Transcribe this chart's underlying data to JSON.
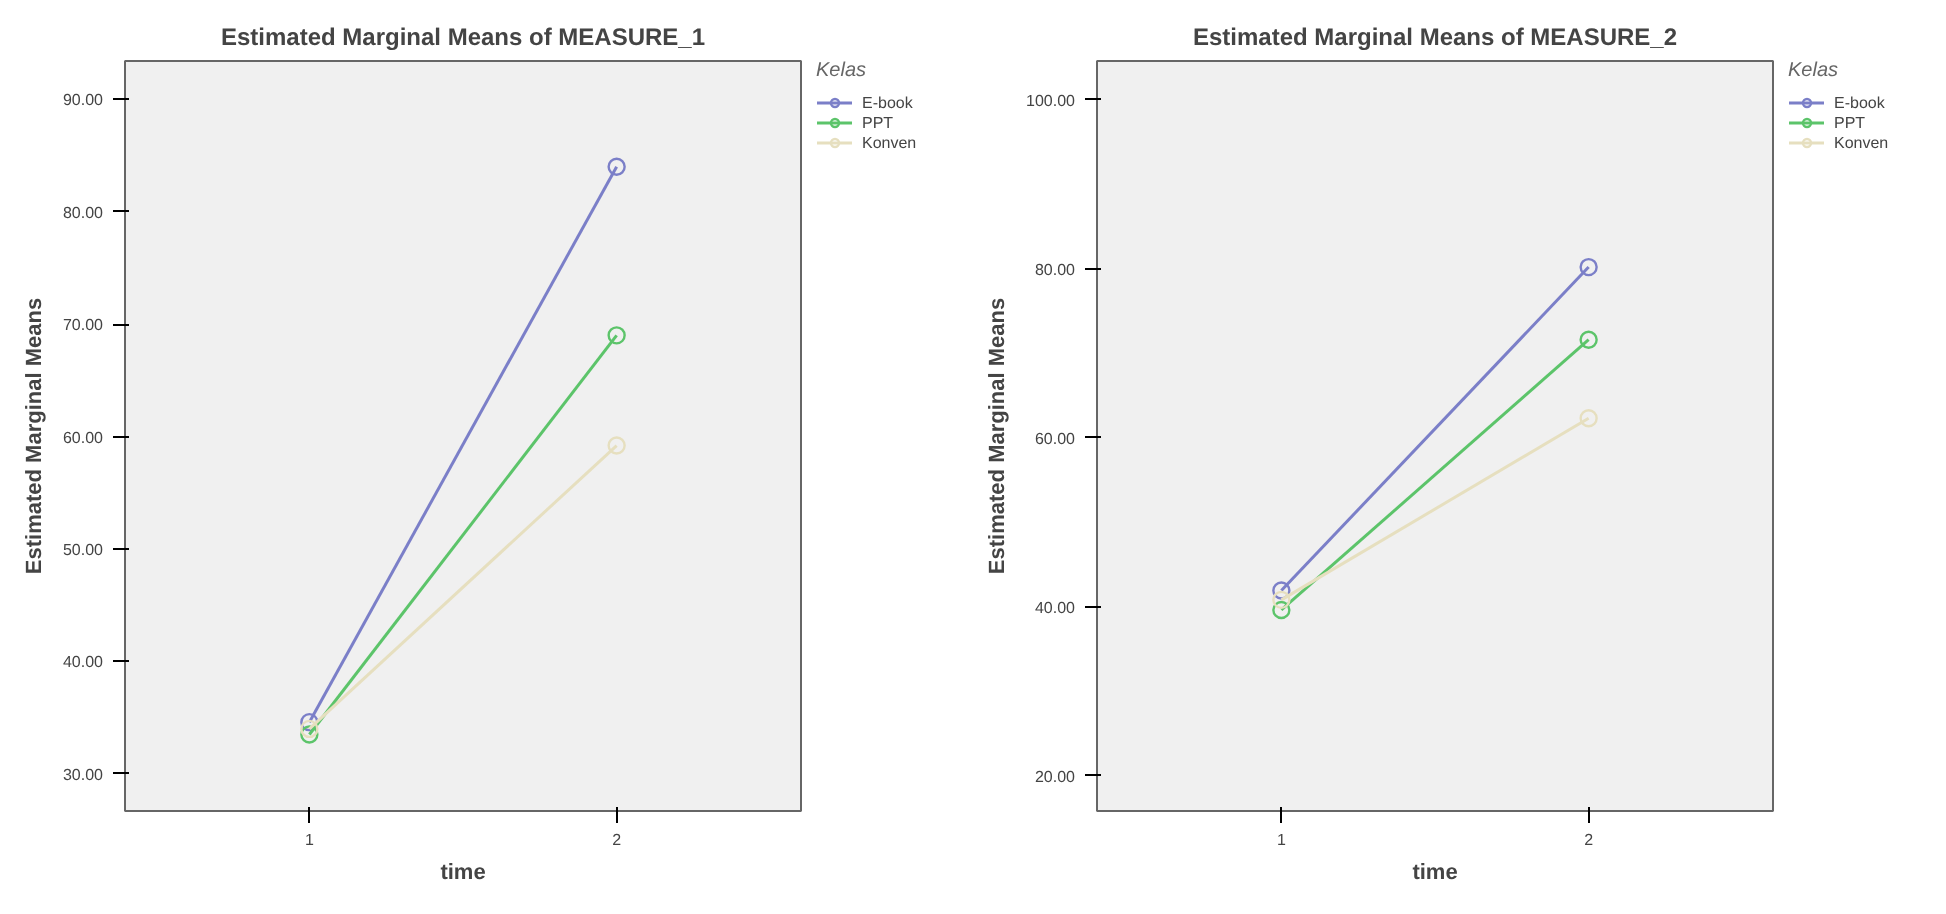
{
  "chart_data": [
    {
      "type": "line",
      "title": "Estimated Marginal Means of MEASURE_1",
      "xlabel": "time",
      "ylabel": "Estimated Marginal Means",
      "legend_title": "Kelas",
      "categories": [
        "1",
        "2"
      ],
      "ylim": [
        26.7,
        93.4
      ],
      "yticks": [
        {
          "value": 30,
          "label": "30.00"
        },
        {
          "value": 40,
          "label": "40.00"
        },
        {
          "value": 50,
          "label": "50.00"
        },
        {
          "value": 60,
          "label": "60.00"
        },
        {
          "value": 70,
          "label": "70.00"
        },
        {
          "value": 80,
          "label": "80.00"
        },
        {
          "value": 90,
          "label": "90.00"
        }
      ],
      "legend": "top right",
      "marker": "circle",
      "line_style": "solid",
      "series": [
        {
          "name": "E-book",
          "color": "#7b7fc8",
          "values": [
            34.6,
            84.0
          ]
        },
        {
          "name": "PPT",
          "color": "#5cc46a",
          "values": [
            33.5,
            69.0
          ]
        },
        {
          "name": "Konven",
          "color": "#e6dfbf",
          "values": [
            34.0,
            59.2
          ]
        }
      ]
    },
    {
      "type": "line",
      "title": "Estimated Marginal Means of MEASURE_2",
      "xlabel": "time",
      "ylabel": "Estimated Marginal Means",
      "legend_title": "Kelas",
      "categories": [
        "1",
        "2"
      ],
      "ylim": [
        15.8,
        104.6
      ],
      "yticks": [
        {
          "value": 20,
          "label": "20.00"
        },
        {
          "value": 40,
          "label": "40.00"
        },
        {
          "value": 60,
          "label": "60.00"
        },
        {
          "value": 80,
          "label": "80.00"
        },
        {
          "value": 100,
          "label": "100.00"
        }
      ],
      "legend": "top right",
      "marker": "circle",
      "line_style": "solid",
      "series": [
        {
          "name": "E-book",
          "color": "#7b7fc8",
          "values": [
            41.9,
            80.2
          ]
        },
        {
          "name": "PPT",
          "color": "#5cc46a",
          "values": [
            39.6,
            71.6
          ]
        },
        {
          "name": "Konven",
          "color": "#e6dfbf",
          "values": [
            40.8,
            62.3
          ]
        }
      ]
    }
  ]
}
